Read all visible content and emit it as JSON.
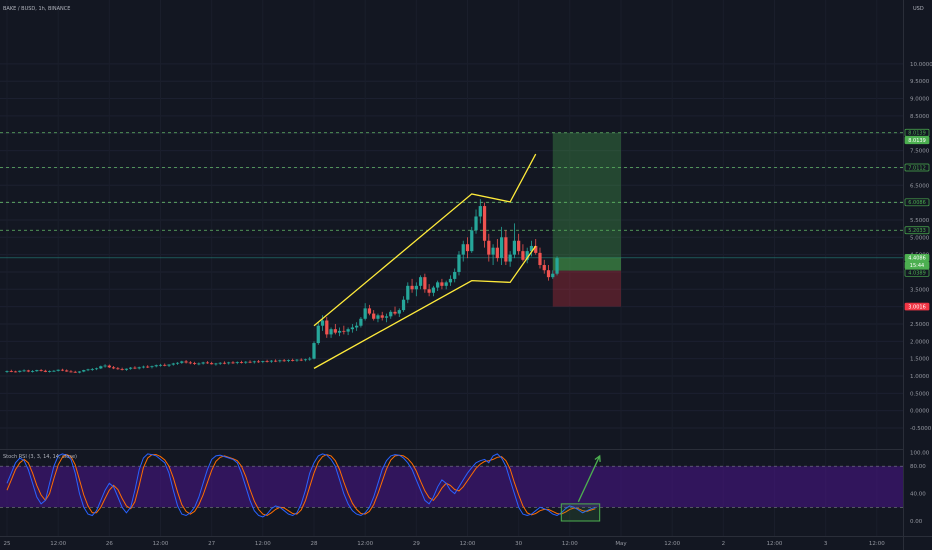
{
  "chart_data": {
    "type": "candlestick",
    "symbol_label": "BAKE / BUSD, 1h, BINANCE",
    "currency_label": "USD",
    "price_axis": {
      "ticks": [
        "10.0000",
        "9.5000",
        "9.0000",
        "8.5000",
        "8.0000",
        "7.5000",
        "7.0000",
        "6.5000",
        "6.0000",
        "5.5000",
        "5.0000",
        "4.5000",
        "4.0000",
        "3.5000",
        "3.0000",
        "2.5000",
        "2.0000",
        "1.5000",
        "1.0000",
        "0.5000",
        "0.0000",
        "-0.5000"
      ],
      "range": [
        -0.75,
        10.5
      ]
    },
    "time_axis": {
      "ticks": [
        "25",
        "12:00",
        "26",
        "12:00",
        "27",
        "12:00",
        "28",
        "12:00",
        "29",
        "12:00",
        "30",
        "12:00",
        "May",
        "12:00",
        "2",
        "12:00",
        "3",
        "12:00"
      ]
    },
    "price_tags": [
      {
        "text": "8.0139",
        "value": 8.0139,
        "color": "#4caf50",
        "style": "outline"
      },
      {
        "text": "8.0139",
        "value": 8.0139,
        "color": "#4caf50",
        "style": "filled"
      },
      {
        "text": "7.0112",
        "value": 7.0112,
        "color": "#4caf50",
        "style": "outline"
      },
      {
        "text": "6.0086",
        "value": 6.0086,
        "color": "#4caf50",
        "style": "outline"
      },
      {
        "text": "5.2033",
        "value": 5.2033,
        "color": "#4caf50",
        "style": "outline"
      },
      {
        "text": "4.4086",
        "value": 4.4086,
        "color": "#4caf50",
        "style": "filled"
      },
      {
        "text": "15:44",
        "value": 4.2,
        "color": "#4caf50",
        "style": "filled"
      },
      {
        "text": "4.0389",
        "value": 4.0389,
        "color": "#4caf50",
        "style": "outline"
      },
      {
        "text": "3.0016",
        "value": 3.0016,
        "color": "#f23645",
        "style": "filled"
      }
    ],
    "horizontal_levels": [
      8.0139,
      7.0112,
      6.0086,
      5.2033
    ],
    "position": {
      "entry": 4.0389,
      "target": 8.0139,
      "stop": 3.0016,
      "start_time": 128,
      "end_time": 144
    },
    "channel_upper": [
      [
        72,
        2.45
      ],
      [
        109,
        6.25
      ],
      [
        118,
        6.02
      ],
      [
        124,
        7.4
      ]
    ],
    "channel_lower": [
      [
        72,
        1.22
      ],
      [
        109,
        3.75
      ],
      [
        118,
        3.7
      ],
      [
        124,
        4.75
      ]
    ],
    "candles": {
      "time_unit": "hours from Apr 25 00:00",
      "up_color": "#26a69a",
      "down_color": "#ef5350",
      "ohlc": [
        [
          1.12,
          1.16,
          1.09,
          1.14
        ],
        [
          1.14,
          1.18,
          1.11,
          1.13
        ],
        [
          1.13,
          1.15,
          1.1,
          1.12
        ],
        [
          1.12,
          1.16,
          1.1,
          1.15
        ],
        [
          1.15,
          1.19,
          1.12,
          1.16
        ],
        [
          1.16,
          1.18,
          1.11,
          1.13
        ],
        [
          1.13,
          1.17,
          1.1,
          1.14
        ],
        [
          1.14,
          1.18,
          1.12,
          1.17
        ],
        [
          1.17,
          1.2,
          1.13,
          1.15
        ],
        [
          1.15,
          1.18,
          1.11,
          1.12
        ],
        [
          1.12,
          1.16,
          1.1,
          1.14
        ],
        [
          1.14,
          1.17,
          1.12,
          1.15
        ],
        [
          1.15,
          1.19,
          1.13,
          1.18
        ],
        [
          1.18,
          1.21,
          1.14,
          1.16
        ],
        [
          1.16,
          1.19,
          1.12,
          1.13
        ],
        [
          1.13,
          1.17,
          1.1,
          1.12
        ],
        [
          1.12,
          1.15,
          1.09,
          1.1
        ],
        [
          1.1,
          1.14,
          1.08,
          1.13
        ],
        [
          1.13,
          1.18,
          1.11,
          1.17
        ],
        [
          1.17,
          1.21,
          1.14,
          1.19
        ],
        [
          1.19,
          1.23,
          1.15,
          1.2
        ],
        [
          1.2,
          1.24,
          1.17,
          1.22
        ],
        [
          1.22,
          1.3,
          1.2,
          1.28
        ],
        [
          1.28,
          1.34,
          1.24,
          1.3
        ],
        [
          1.3,
          1.33,
          1.23,
          1.25
        ],
        [
          1.25,
          1.29,
          1.2,
          1.22
        ],
        [
          1.22,
          1.26,
          1.18,
          1.2
        ],
        [
          1.2,
          1.24,
          1.16,
          1.18
        ],
        [
          1.18,
          1.22,
          1.15,
          1.21
        ],
        [
          1.21,
          1.26,
          1.18,
          1.24
        ],
        [
          1.24,
          1.28,
          1.2,
          1.22
        ],
        [
          1.22,
          1.27,
          1.19,
          1.25
        ],
        [
          1.25,
          1.3,
          1.22,
          1.27
        ],
        [
          1.27,
          1.31,
          1.23,
          1.26
        ],
        [
          1.26,
          1.3,
          1.22,
          1.28
        ],
        [
          1.28,
          1.33,
          1.25,
          1.31
        ],
        [
          1.31,
          1.35,
          1.27,
          1.32
        ],
        [
          1.32,
          1.36,
          1.28,
          1.3
        ],
        [
          1.3,
          1.34,
          1.26,
          1.33
        ],
        [
          1.33,
          1.38,
          1.3,
          1.36
        ],
        [
          1.36,
          1.4,
          1.32,
          1.38
        ],
        [
          1.38,
          1.44,
          1.35,
          1.42
        ],
        [
          1.42,
          1.46,
          1.36,
          1.39
        ],
        [
          1.39,
          1.43,
          1.34,
          1.37
        ],
        [
          1.37,
          1.41,
          1.32,
          1.35
        ],
        [
          1.35,
          1.39,
          1.31,
          1.36
        ],
        [
          1.36,
          1.41,
          1.33,
          1.39
        ],
        [
          1.39,
          1.43,
          1.35,
          1.37
        ],
        [
          1.37,
          1.41,
          1.33,
          1.34
        ],
        [
          1.34,
          1.38,
          1.3,
          1.36
        ],
        [
          1.36,
          1.4,
          1.32,
          1.38
        ],
        [
          1.38,
          1.42,
          1.34,
          1.37
        ],
        [
          1.37,
          1.41,
          1.33,
          1.39
        ],
        [
          1.39,
          1.43,
          1.35,
          1.38
        ],
        [
          1.38,
          1.42,
          1.34,
          1.4
        ],
        [
          1.4,
          1.44,
          1.36,
          1.39
        ],
        [
          1.39,
          1.43,
          1.35,
          1.41
        ],
        [
          1.41,
          1.45,
          1.37,
          1.4
        ],
        [
          1.4,
          1.44,
          1.36,
          1.42
        ],
        [
          1.42,
          1.46,
          1.38,
          1.41
        ],
        [
          1.41,
          1.44,
          1.37,
          1.43
        ],
        [
          1.43,
          1.47,
          1.39,
          1.42
        ],
        [
          1.42,
          1.46,
          1.38,
          1.44
        ],
        [
          1.44,
          1.48,
          1.4,
          1.43
        ],
        [
          1.43,
          1.47,
          1.39,
          1.45
        ],
        [
          1.45,
          1.49,
          1.41,
          1.44
        ],
        [
          1.44,
          1.48,
          1.4,
          1.46
        ],
        [
          1.46,
          1.5,
          1.42,
          1.45
        ],
        [
          1.45,
          1.49,
          1.41,
          1.47
        ],
        [
          1.47,
          1.51,
          1.43,
          1.46
        ],
        [
          1.46,
          1.5,
          1.42,
          1.48
        ],
        [
          1.48,
          1.55,
          1.44,
          1.5
        ],
        [
          1.5,
          2.0,
          1.48,
          1.95
        ],
        [
          1.95,
          2.55,
          1.9,
          2.45
        ],
        [
          2.45,
          2.75,
          2.3,
          2.6
        ],
        [
          2.6,
          2.7,
          2.1,
          2.2
        ],
        [
          2.2,
          2.4,
          2.1,
          2.35
        ],
        [
          2.35,
          2.5,
          2.2,
          2.25
        ],
        [
          2.25,
          2.4,
          2.15,
          2.3
        ],
        [
          2.3,
          2.45,
          2.2,
          2.28
        ],
        [
          2.28,
          2.4,
          2.18,
          2.35
        ],
        [
          2.35,
          2.5,
          2.25,
          2.4
        ],
        [
          2.4,
          2.55,
          2.3,
          2.45
        ],
        [
          2.45,
          2.7,
          2.4,
          2.65
        ],
        [
          2.65,
          3.1,
          2.6,
          2.95
        ],
        [
          2.95,
          3.05,
          2.75,
          2.8
        ],
        [
          2.8,
          2.9,
          2.6,
          2.65
        ],
        [
          2.65,
          2.8,
          2.55,
          2.75
        ],
        [
          2.75,
          2.85,
          2.6,
          2.68
        ],
        [
          2.68,
          2.8,
          2.55,
          2.72
        ],
        [
          2.72,
          2.9,
          2.65,
          2.85
        ],
        [
          2.85,
          3.0,
          2.75,
          2.8
        ],
        [
          2.8,
          2.95,
          2.7,
          2.9
        ],
        [
          2.9,
          3.3,
          2.85,
          3.2
        ],
        [
          3.2,
          3.7,
          3.1,
          3.6
        ],
        [
          3.6,
          3.8,
          3.4,
          3.5
        ],
        [
          3.5,
          3.7,
          3.3,
          3.6
        ],
        [
          3.6,
          3.9,
          3.5,
          3.85
        ],
        [
          3.85,
          3.95,
          3.4,
          3.5
        ],
        [
          3.5,
          3.65,
          3.3,
          3.4
        ],
        [
          3.4,
          3.6,
          3.3,
          3.55
        ],
        [
          3.55,
          3.75,
          3.45,
          3.7
        ],
        [
          3.7,
          3.8,
          3.5,
          3.6
        ],
        [
          3.6,
          3.75,
          3.5,
          3.7
        ],
        [
          3.7,
          3.9,
          3.6,
          3.8
        ],
        [
          3.8,
          4.1,
          3.7,
          4.0
        ],
        [
          4.0,
          4.6,
          3.9,
          4.5
        ],
        [
          4.5,
          4.9,
          4.3,
          4.8
        ],
        [
          4.8,
          5.0,
          4.4,
          4.6
        ],
        [
          4.6,
          5.3,
          4.55,
          5.2
        ],
        [
          5.2,
          5.8,
          5.1,
          5.6
        ],
        [
          5.6,
          6.1,
          5.4,
          5.9
        ],
        [
          5.9,
          6.0,
          4.7,
          4.9
        ],
        [
          4.9,
          5.1,
          4.3,
          4.5
        ],
        [
          4.5,
          4.8,
          4.2,
          4.7
        ],
        [
          4.7,
          4.95,
          4.3,
          4.4
        ],
        [
          4.4,
          5.3,
          4.2,
          5.0
        ],
        [
          5.0,
          5.2,
          4.2,
          4.3
        ],
        [
          4.3,
          4.6,
          4.15,
          4.5
        ],
        [
          4.5,
          5.4,
          4.4,
          4.9
        ],
        [
          4.9,
          5.1,
          4.5,
          4.6
        ],
        [
          4.6,
          4.8,
          4.3,
          4.35
        ],
        [
          4.35,
          4.7,
          4.25,
          4.6
        ],
        [
          4.6,
          4.9,
          4.45,
          4.75
        ],
        [
          4.75,
          4.95,
          4.5,
          4.55
        ],
        [
          4.55,
          4.7,
          4.1,
          4.2
        ],
        [
          4.2,
          4.35,
          3.95,
          4.05
        ],
        [
          4.05,
          4.2,
          3.75,
          3.85
        ],
        [
          3.85,
          4.05,
          3.8,
          3.95
        ],
        [
          3.95,
          4.45,
          3.9,
          4.4
        ]
      ]
    }
  },
  "indicator": {
    "label": "Stoch RSI (3, 3, 14, 14, close)",
    "ticks": [
      "100.00",
      "80.00",
      "40.00",
      "0.00"
    ],
    "range": [
      -10,
      110
    ],
    "band": [
      20,
      80
    ],
    "band_color": "#4a148c",
    "k_color": "#2962ff",
    "d_color": "#ff6d00",
    "highlight_box": {
      "t0": 130,
      "t1": 139,
      "v0": 0,
      "v1": 25
    },
    "arrow": {
      "t0": 134,
      "t1": 139,
      "v0": 28,
      "v1": 95
    },
    "k": [
      55,
      70,
      85,
      92,
      88,
      75,
      55,
      35,
      25,
      30,
      55,
      80,
      95,
      98,
      96,
      90,
      70,
      40,
      20,
      10,
      8,
      15,
      30,
      45,
      55,
      50,
      35,
      20,
      12,
      20,
      45,
      75,
      92,
      98,
      97,
      95,
      90,
      85,
      70,
      45,
      22,
      10,
      8,
      12,
      20,
      35,
      55,
      75,
      90,
      95,
      96,
      94,
      92,
      90,
      85,
      70,
      50,
      30,
      15,
      8,
      6,
      10,
      18,
      22,
      20,
      15,
      10,
      8,
      12,
      25,
      45,
      70,
      85,
      95,
      98,
      96,
      90,
      80,
      60,
      40,
      25,
      15,
      10,
      8,
      12,
      20,
      35,
      55,
      75,
      88,
      95,
      97,
      96,
      92,
      85,
      75,
      60,
      45,
      30,
      25,
      35,
      50,
      60,
      55,
      45,
      40,
      50,
      60,
      70,
      78,
      85,
      88,
      90,
      85,
      95,
      98,
      92,
      80,
      60,
      40,
      20,
      10,
      8,
      10,
      15,
      20,
      18,
      15,
      10,
      8,
      12,
      18,
      22,
      20,
      16,
      12,
      15,
      18,
      20
    ],
    "d": [
      45,
      60,
      75,
      85,
      90,
      85,
      70,
      52,
      38,
      30,
      40,
      62,
      82,
      93,
      97,
      94,
      82,
      60,
      38,
      22,
      12,
      12,
      20,
      33,
      45,
      52,
      46,
      33,
      22,
      18,
      28,
      52,
      78,
      92,
      97,
      97,
      94,
      89,
      80,
      63,
      42,
      24,
      14,
      10,
      14,
      24,
      38,
      56,
      74,
      87,
      93,
      95,
      93,
      91,
      88,
      80,
      65,
      46,
      29,
      17,
      10,
      8,
      12,
      17,
      20,
      19,
      15,
      11,
      10,
      16,
      30,
      50,
      70,
      86,
      94,
      97,
      95,
      88,
      75,
      57,
      40,
      26,
      17,
      11,
      10,
      14,
      24,
      40,
      58,
      76,
      89,
      95,
      96,
      95,
      91,
      84,
      73,
      58,
      44,
      34,
      30,
      38,
      48,
      55,
      52,
      46,
      44,
      50,
      59,
      68,
      77,
      83,
      87,
      88,
      90,
      93,
      94,
      88,
      76,
      56,
      38,
      22,
      12,
      9,
      11,
      15,
      17,
      17,
      14,
      11,
      10,
      13,
      17,
      19,
      18,
      15,
      14,
      16,
      18
    ]
  }
}
